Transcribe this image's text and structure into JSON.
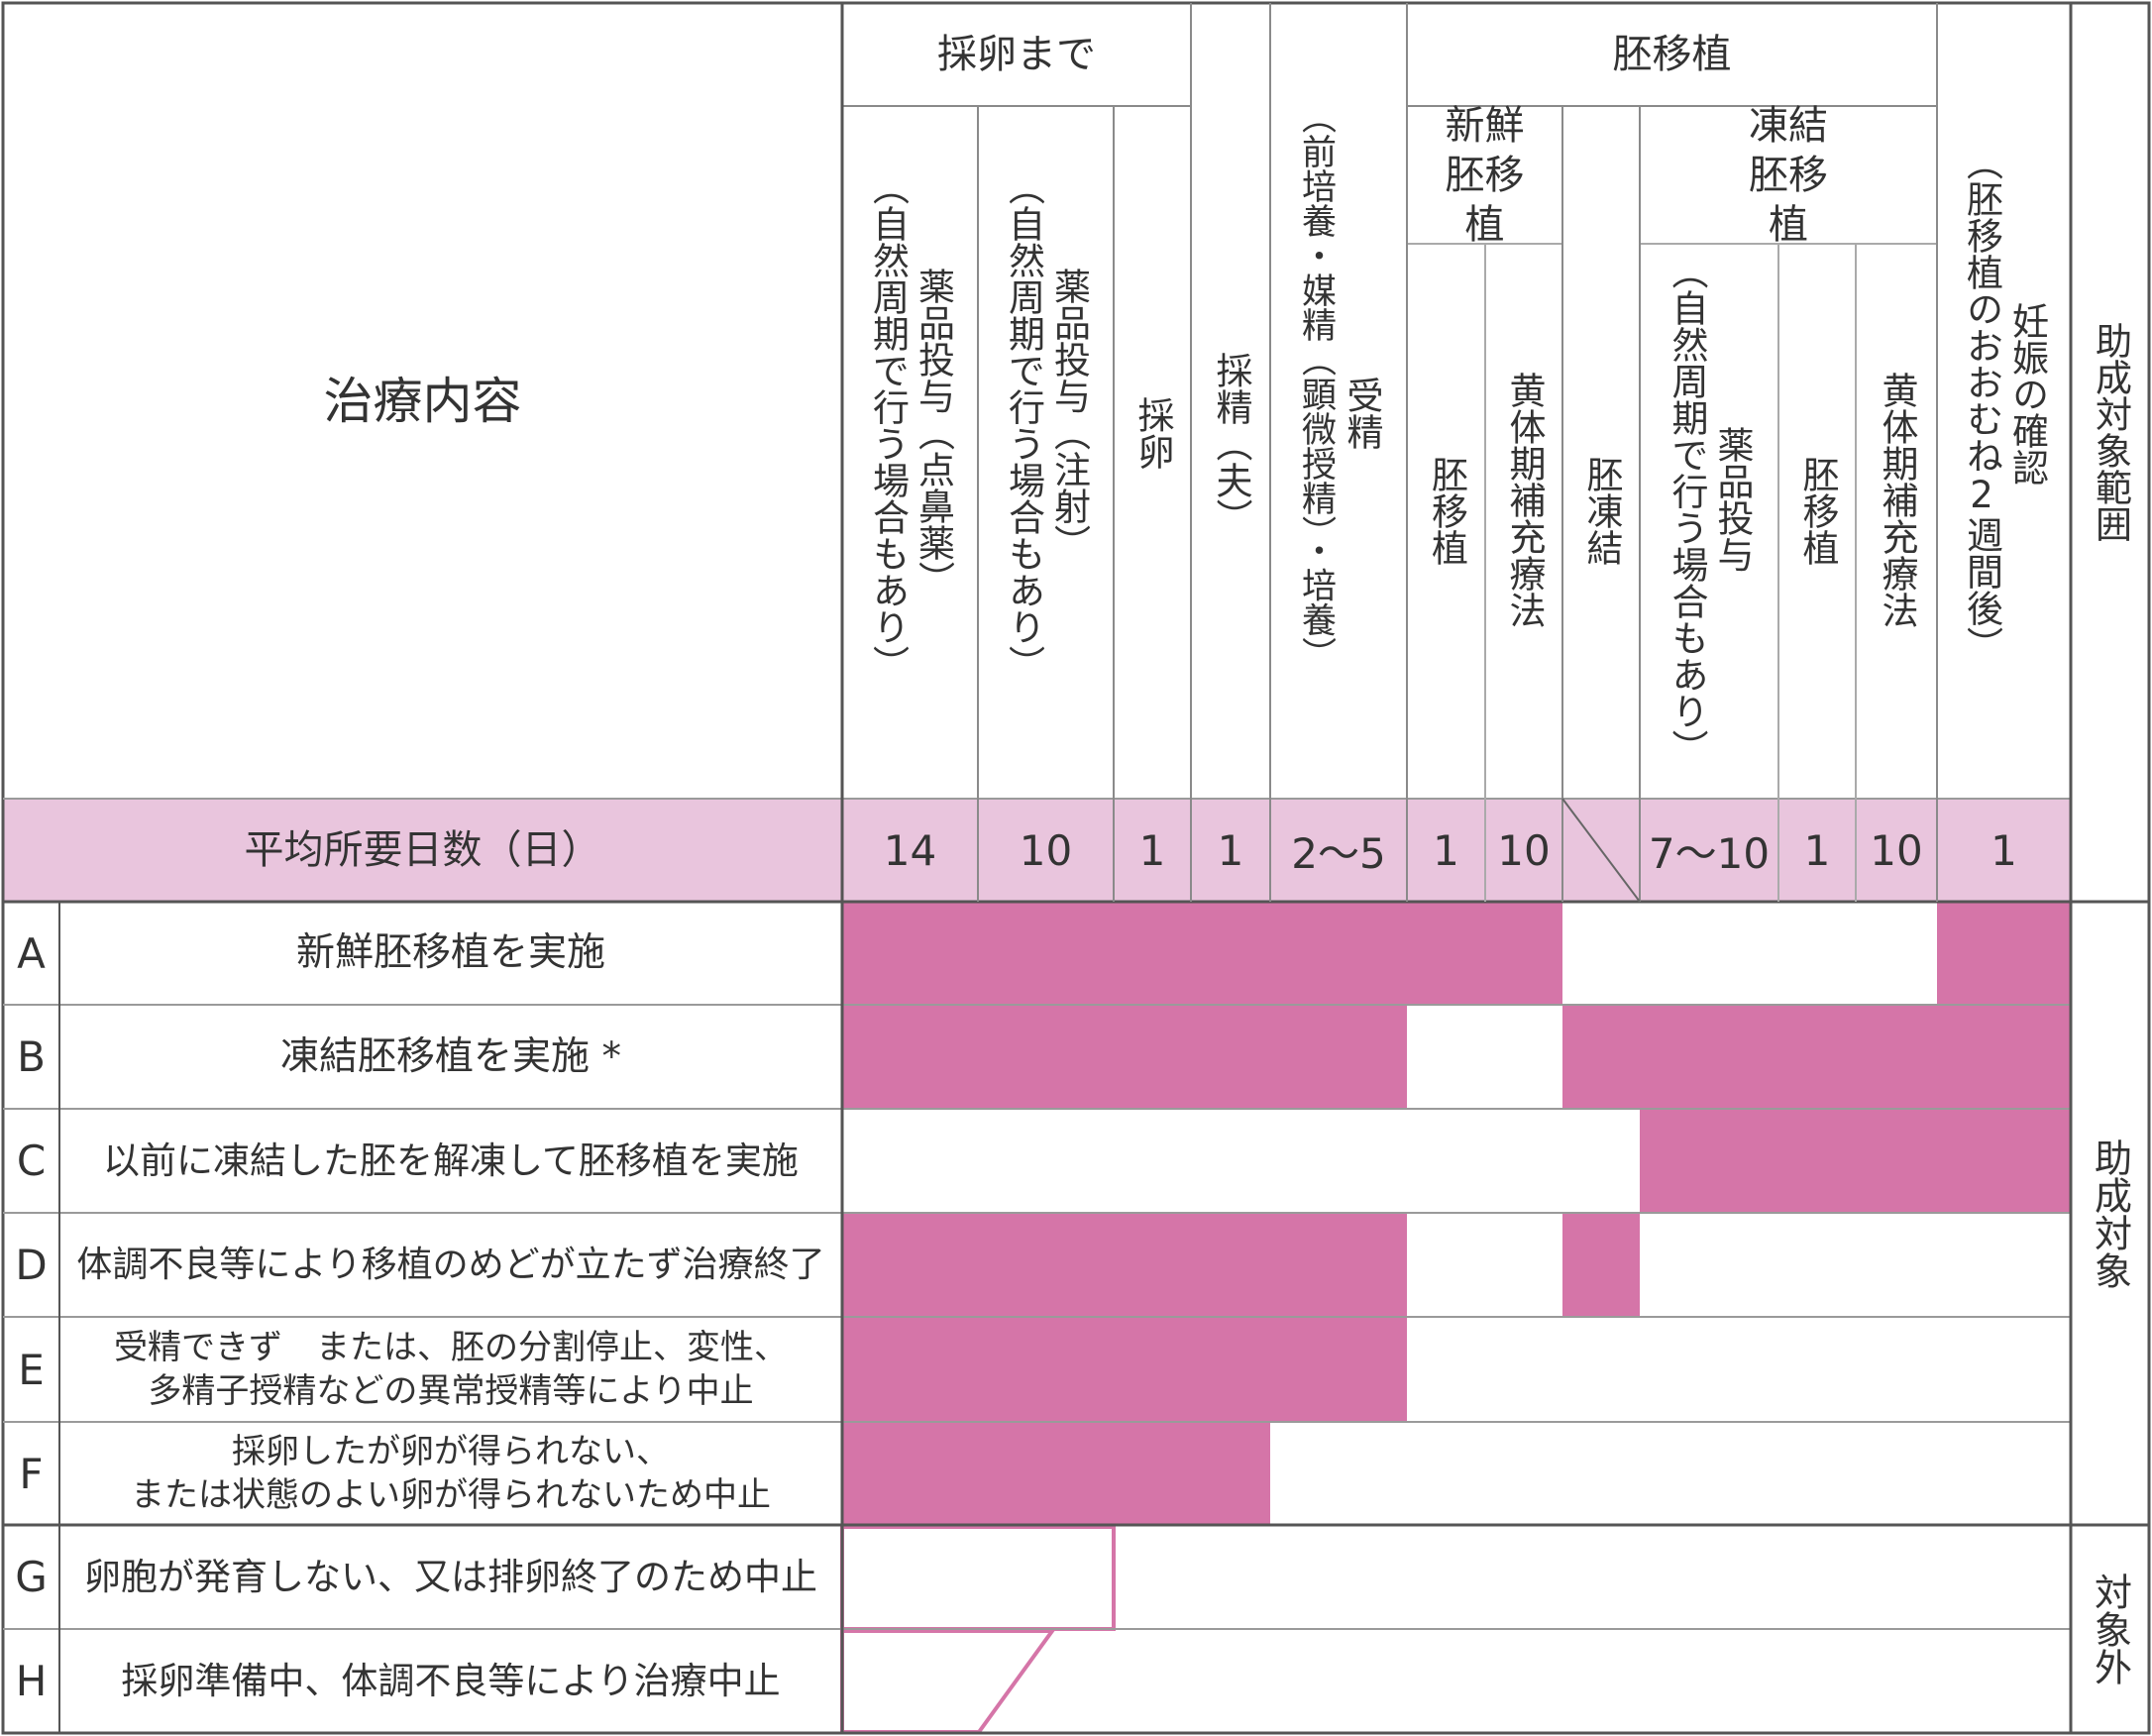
{
  "colors": {
    "bar": "#d575a8",
    "band": "#e9c5dd",
    "line": "#555555",
    "grid": "#9a9a9a"
  },
  "header": {
    "treatment": "治療内容",
    "group_egg": "採卵まで",
    "group_transfer": "胚移植",
    "fresh": "新鮮胚移植",
    "frozen": "凍結胚移植",
    "col1": {
      "main": "薬品投与（点鼻薬）",
      "sub": "（自然周期で行う場合もあり）"
    },
    "col2": {
      "main": "薬品投与（注射）",
      "sub": "（自然周期で行う場合もあり）"
    },
    "col3": "採卵",
    "col4": "採精（夫）",
    "col5": {
      "main": "受精",
      "sub": "（前培養・媒精（顕微授精）・培養）"
    },
    "col6": "胚移植",
    "col7": "黄体期補充療法",
    "col8": "胚凍結",
    "col9": {
      "main": "薬品投与",
      "sub": "（自然周期で行う場合もあり）"
    },
    "col10": "胚移植",
    "col11": "黄体期補充療法",
    "col12": {
      "main": "妊娠の確認",
      "sub": "（胚移植のおおむね2週間後）"
    },
    "col13": "助成対象範囲"
  },
  "days_row": {
    "label": "平均所要日数（日）",
    "values": [
      "14",
      "10",
      "1",
      "1",
      "2～5",
      "1",
      "10",
      "",
      "7～10",
      "1",
      "10",
      "1"
    ]
  },
  "rows": [
    {
      "letter": "A",
      "label": "新鮮胚移植を実施"
    },
    {
      "letter": "B",
      "label": "凍結胚移植を実施 *"
    },
    {
      "letter": "C",
      "label": "以前に凍結した胚を解凍して胚移植を実施"
    },
    {
      "letter": "D",
      "label": "体調不良等により移植のめどが立たず治療終了"
    },
    {
      "letter": "E",
      "label": "受精できず　または、胚の分割停止、変性、\n多精子授精などの異常授精等により中止"
    },
    {
      "letter": "F",
      "label": "採卵したが卵が得られない、\nまたは状態のよい卵が得られないため中止"
    },
    {
      "letter": "G",
      "label": "卵胞が発育しない、又は排卵終了のため中止"
    },
    {
      "letter": "H",
      "label": "採卵準備中、体調不良等により治療中止"
    }
  ],
  "coverage": {
    "covered": "助成対象",
    "excluded": "対象外"
  }
}
